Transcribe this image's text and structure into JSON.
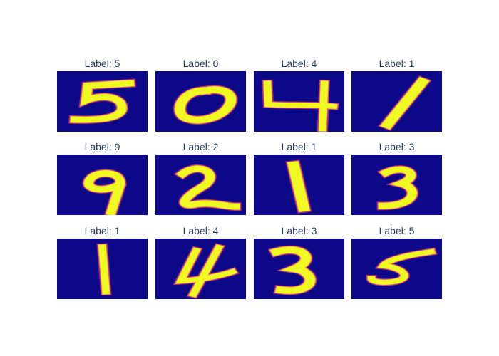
{
  "chart_data": {
    "type": "heatmap",
    "grid": {
      "rows": 3,
      "cols": 4
    },
    "colorscale": {
      "name": "plasma",
      "background": "#0d0887",
      "stops": [
        "#0d0887",
        "#6a00a8",
        "#b12a90",
        "#e16462",
        "#fca636",
        "#f0f921"
      ]
    },
    "panels": [
      {
        "title": "Label: 5",
        "digit": 5
      },
      {
        "title": "Label: 0",
        "digit": 0
      },
      {
        "title": "Label: 4",
        "digit": 4
      },
      {
        "title": "Label: 1",
        "digit": 1
      },
      {
        "title": "Label: 9",
        "digit": 9
      },
      {
        "title": "Label: 2",
        "digit": 2
      },
      {
        "title": "Label: 1",
        "digit": 1
      },
      {
        "title": "Label: 3",
        "digit": 3
      },
      {
        "title": "Label: 1",
        "digit": 1
      },
      {
        "title": "Label: 4",
        "digit": 4
      },
      {
        "title": "Label: 3",
        "digit": 3
      },
      {
        "title": "Label: 5",
        "digit": 5
      }
    ]
  }
}
